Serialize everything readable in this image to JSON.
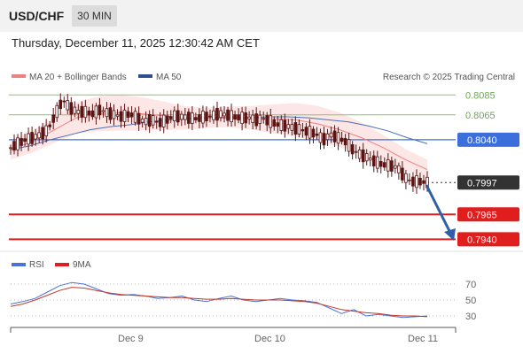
{
  "header": {
    "symbol": "USD/CHF",
    "timeframe": "30 MIN"
  },
  "timestamp": "Thursday, December 11, 2025 12:30:42 AM CET",
  "legend": {
    "ma20": "MA 20 + Bollinger Bands",
    "ma50": "MA 50",
    "credit": "Research © 2025 Trading Central"
  },
  "colors": {
    "ma20": "#f08080",
    "ma50": "#4a6fb5",
    "green": "#8dc26f",
    "blue": "#3d6fdc",
    "red": "#e01e1e",
    "current": "#333333",
    "candle": "#5b1414",
    "arrow": "#2e5fa8"
  },
  "chart_data": {
    "type": "candlestick",
    "symbol": "USD/CHF",
    "interval": "30 MIN",
    "ylim": [
      0.7935,
      0.8095
    ],
    "xlabels": [
      "Dec 9",
      "Dec 10",
      "Dec 11"
    ],
    "levels": [
      {
        "value": 0.8085,
        "label": "0.8085",
        "kind": "resistance",
        "color": "#8dc26f"
      },
      {
        "value": 0.8065,
        "label": "0.8065",
        "kind": "resistance",
        "color": "#8dc26f"
      },
      {
        "value": 0.804,
        "label": "0.8040",
        "kind": "pivot",
        "color": "#3d6fdc"
      },
      {
        "value": 0.7997,
        "label": "0.7997",
        "kind": "current",
        "color": "#333333"
      },
      {
        "value": 0.7965,
        "label": "0.7965",
        "kind": "target",
        "color": "#e01e1e"
      },
      {
        "value": 0.794,
        "label": "0.7940",
        "kind": "target",
        "color": "#e01e1e"
      }
    ],
    "price_path": [
      0.8032,
      0.8036,
      0.804,
      0.8042,
      0.8045,
      0.805,
      0.8065,
      0.808,
      0.8072,
      0.8068,
      0.8068,
      0.8066,
      0.807,
      0.8067,
      0.8065,
      0.8063,
      0.8066,
      0.8062,
      0.8058,
      0.806,
      0.8057,
      0.806,
      0.8064,
      0.8063,
      0.8062,
      0.8061,
      0.8063,
      0.8064,
      0.8066,
      0.8065,
      0.8063,
      0.8062,
      0.8062,
      0.806,
      0.8061,
      0.8058,
      0.8055,
      0.8054,
      0.8052,
      0.805,
      0.8048,
      0.8046,
      0.804,
      0.8045,
      0.8042,
      0.8038,
      0.803,
      0.8025,
      0.8022,
      0.8018,
      0.8015,
      0.8014,
      0.8012,
      0.8002,
      0.7998,
      0.7998,
      0.7997
    ],
    "ma50": [
      0.803,
      0.8034,
      0.804,
      0.8045,
      0.805,
      0.8053,
      0.8055,
      0.8058,
      0.806,
      0.8061,
      0.8062,
      0.8062,
      0.8062,
      0.8063,
      0.8063,
      0.8062,
      0.806,
      0.8058,
      0.8054,
      0.8049,
      0.8042,
      0.8036
    ],
    "ma20": [
      0.803,
      0.8038,
      0.805,
      0.8062,
      0.8066,
      0.8067,
      0.8066,
      0.8064,
      0.8062,
      0.8062,
      0.8063,
      0.8062,
      0.8061,
      0.806,
      0.8056,
      0.805,
      0.8042,
      0.8032,
      0.802,
      0.801
    ],
    "rsi": {
      "ylim": [
        20,
        80
      ],
      "levels": [
        70,
        50,
        30
      ],
      "legend": [
        "RSI",
        "9MA"
      ],
      "rsi_values": [
        45,
        48,
        52,
        60,
        68,
        72,
        70,
        64,
        58,
        56,
        57,
        55,
        52,
        53,
        55,
        50,
        48,
        52,
        55,
        50,
        48,
        50,
        52,
        50,
        49,
        47,
        40,
        33,
        38,
        30,
        32,
        30,
        28,
        29,
        30
      ],
      "ma9_values": [
        42,
        45,
        50,
        56,
        62,
        66,
        65,
        62,
        59,
        57,
        56,
        55,
        54,
        53,
        53,
        52,
        51,
        51,
        52,
        51,
        50,
        50,
        50,
        49,
        48,
        46,
        42,
        38,
        36,
        34,
        33,
        31,
        30,
        30,
        29
      ]
    }
  }
}
